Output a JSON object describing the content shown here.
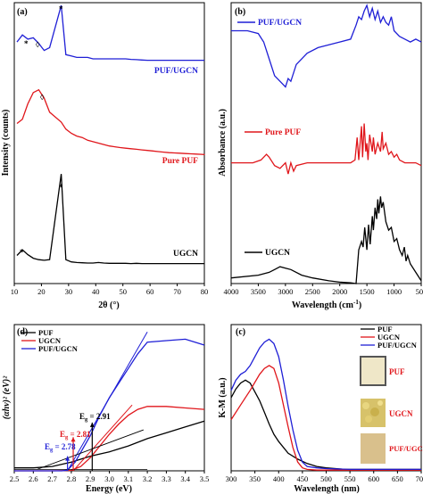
{
  "chart_data": [
    {
      "panel": "(a)",
      "type": "line",
      "xlabel": "2θ (°)",
      "ylabel": "Intensity (counts)",
      "xlim": [
        10,
        80
      ],
      "x_ticks": [
        "10",
        "20",
        "30",
        "40",
        "50",
        "60",
        "70",
        "80"
      ],
      "series": [
        {
          "name": "PUF/UGCN",
          "color": "#1f1fd6",
          "y": [
            0.86,
            0.885,
            0.87,
            0.875,
            0.855,
            0.83,
            0.84,
            0.99,
            0.815,
            0.81,
            0.805,
            0.805,
            0.805,
            0.8,
            0.8,
            0.8,
            0.8,
            0.8,
            0.8,
            0.8,
            0.798,
            0.797,
            0.796,
            0.795,
            0.795,
            0.795,
            0.795,
            0.795,
            0.795,
            0.795,
            0.795,
            0.795,
            0.795,
            0.795,
            0.795,
            0.795
          ]
        },
        {
          "name": "Pure PUF",
          "color": "#e0161b",
          "y": [
            0.57,
            0.585,
            0.64,
            0.68,
            0.69,
            0.66,
            0.61,
            0.575,
            0.55,
            0.535,
            0.525,
            0.52,
            0.51,
            0.505,
            0.5,
            0.495,
            0.49,
            0.487,
            0.484,
            0.482,
            0.48,
            0.478,
            0.476,
            0.474,
            0.472,
            0.47,
            0.468,
            0.466,
            0.465,
            0.464,
            0.463,
            0.462,
            0.461,
            0.46,
            0.459,
            0.458
          ]
        },
        {
          "name": "UGCN",
          "color": "#000000",
          "y": [
            0.1,
            0.12,
            0.103,
            0.09,
            0.085,
            0.083,
            0.085,
            0.39,
            0.085,
            0.077,
            0.075,
            0.074,
            0.073,
            0.073,
            0.075,
            0.073,
            0.072,
            0.072,
            0.072,
            0.072,
            0.071,
            0.072,
            0.071,
            0.071,
            0.071,
            0.071,
            0.071,
            0.071,
            0.071,
            0.071,
            0.071,
            0.071,
            0.071,
            0.071,
            0.071,
            0.071
          ]
        }
      ],
      "x": [
        11,
        13,
        15,
        17,
        19,
        21,
        23,
        27.3,
        29,
        31,
        33,
        35,
        37,
        39,
        41,
        43,
        45,
        47,
        49,
        51,
        53,
        55,
        57,
        59,
        61,
        63,
        65,
        67,
        69,
        71,
        73,
        75,
        77,
        79,
        80,
        80
      ],
      "annotations": [
        "*",
        "◊",
        "*",
        "◊",
        "*",
        "*"
      ]
    },
    {
      "panel": "(b)",
      "type": "line",
      "xlabel": "Wavelength (cm⁻¹)",
      "ylabel": "Absorbance (a.u.)",
      "xlim": [
        4000,
        500
      ],
      "x_ticks": [
        "4000",
        "3500",
        "3000",
        "2500",
        "2000",
        "1500",
        "1000",
        "500"
      ],
      "series": [
        {
          "name": "PUF/UGCN",
          "color": "#1f1fd6",
          "x": [
            4000,
            3700,
            3500,
            3400,
            3300,
            3200,
            3100,
            3000,
            2950,
            2900,
            2800,
            2600,
            2400,
            2200,
            2000,
            1800,
            1700,
            1650,
            1600,
            1550,
            1500,
            1450,
            1400,
            1350,
            1300,
            1250,
            1200,
            1150,
            1100,
            1050,
            1000,
            900,
            800,
            700,
            600,
            500
          ],
          "y": [
            0.9,
            0.9,
            0.89,
            0.86,
            0.8,
            0.74,
            0.72,
            0.7,
            0.73,
            0.72,
            0.78,
            0.82,
            0.84,
            0.85,
            0.86,
            0.87,
            0.92,
            0.95,
            0.94,
            0.97,
            0.99,
            0.95,
            0.98,
            0.94,
            0.97,
            0.93,
            0.95,
            0.93,
            0.92,
            0.95,
            0.9,
            0.88,
            0.87,
            0.86,
            0.87,
            0.86
          ]
        },
        {
          "name": "Pure PUF",
          "color": "#e0161b",
          "x": [
            4000,
            3600,
            3450,
            3350,
            3300,
            3200,
            3100,
            3000,
            2950,
            2900,
            2850,
            2800,
            2600,
            2400,
            2200,
            2000,
            1800,
            1720,
            1680,
            1650,
            1600,
            1580,
            1550,
            1520,
            1500,
            1480,
            1450,
            1400,
            1380,
            1350,
            1300,
            1250,
            1220,
            1200,
            1150,
            1100,
            1050,
            1000,
            950,
            900,
            800,
            700,
            600,
            500
          ],
          "y": [
            0.43,
            0.43,
            0.44,
            0.46,
            0.45,
            0.42,
            0.41,
            0.43,
            0.39,
            0.43,
            0.4,
            0.42,
            0.43,
            0.43,
            0.43,
            0.43,
            0.43,
            0.44,
            0.52,
            0.44,
            0.56,
            0.45,
            0.57,
            0.47,
            0.5,
            0.44,
            0.53,
            0.47,
            0.52,
            0.46,
            0.5,
            0.47,
            0.54,
            0.48,
            0.5,
            0.46,
            0.47,
            0.45,
            0.46,
            0.44,
            0.43,
            0.43,
            0.43,
            0.42
          ]
        },
        {
          "name": "UGCN",
          "color": "#000000",
          "x": [
            4000,
            3500,
            3300,
            3200,
            3100,
            3000,
            2900,
            2700,
            2500,
            2200,
            2000,
            1800,
            1700,
            1650,
            1600,
            1570,
            1540,
            1500,
            1470,
            1440,
            1400,
            1380,
            1350,
            1320,
            1300,
            1280,
            1250,
            1230,
            1200,
            1150,
            1100,
            1050,
            1000,
            950,
            900,
            850,
            810,
            780,
            750,
            700,
            600,
            500
          ],
          "y": [
            0.02,
            0.03,
            0.04,
            0.05,
            0.06,
            0.055,
            0.05,
            0.03,
            0.02,
            0.01,
            0.005,
            0.003,
            0.0,
            0.12,
            0.15,
            0.13,
            0.2,
            0.12,
            0.21,
            0.14,
            0.24,
            0.19,
            0.27,
            0.23,
            0.3,
            0.25,
            0.31,
            0.27,
            0.29,
            0.22,
            0.19,
            0.2,
            0.15,
            0.16,
            0.12,
            0.1,
            0.13,
            0.08,
            0.1,
            0.07,
            0.04,
            0.01
          ]
        }
      ]
    },
    {
      "panel": "(d)",
      "type": "line",
      "xlabel": "Energy (eV)",
      "ylabel": "(αhν)² (eV)²",
      "xlim": [
        2.5,
        3.5
      ],
      "x_ticks": [
        "2.5",
        "2.6",
        "2.7",
        "2.8",
        "2.9",
        "3.0",
        "3.1",
        "3.2",
        "3.3",
        "3.4",
        "3.5"
      ],
      "series": [
        {
          "name": "PUF",
          "color": "#000000",
          "x": [
            2.5,
            2.6,
            2.7,
            2.8,
            2.9,
            3.0,
            3.1,
            3.2,
            3.3,
            3.4,
            3.5
          ],
          "y": [
            0.02,
            0.02,
            0.03,
            0.06,
            0.1,
            0.13,
            0.17,
            0.22,
            0.26,
            0.3,
            0.34
          ]
        },
        {
          "name": "UGCN",
          "color": "#e0161b",
          "x": [
            2.5,
            2.6,
            2.7,
            2.8,
            2.85,
            2.9,
            2.95,
            3.0,
            3.05,
            3.1,
            3.15,
            3.2,
            3.3,
            3.4,
            3.5
          ],
          "y": [
            0.0,
            0.0,
            0.0,
            0.003,
            0.03,
            0.09,
            0.17,
            0.25,
            0.32,
            0.38,
            0.42,
            0.44,
            0.44,
            0.43,
            0.42
          ]
        },
        {
          "name": "PUF/UGCN",
          "color": "#1f1fd6",
          "x": [
            2.5,
            2.6,
            2.7,
            2.75,
            2.78,
            2.82,
            2.9,
            2.95,
            3.0,
            3.05,
            3.1,
            3.15,
            3.2,
            3.3,
            3.4,
            3.5
          ],
          "y": [
            0.0,
            0.0,
            0.0,
            0.0,
            0.005,
            0.06,
            0.24,
            0.38,
            0.5,
            0.6,
            0.7,
            0.8,
            0.88,
            0.89,
            0.9,
            0.86
          ]
        }
      ],
      "annotations": {
        "eg_puf": "E_g = 2.91",
        "eg_ugcn": "E_g = 2.81",
        "eg_pufugcn": "E_g = 2.78"
      }
    },
    {
      "panel": "(c)",
      "type": "line",
      "xlabel": "Wavelength (nm)",
      "ylabel": "K-M (a.u.)",
      "xlim": [
        300,
        700
      ],
      "x_ticks": [
        "300",
        "350",
        "400",
        "450",
        "500",
        "550",
        "600",
        "650",
        "700"
      ],
      "series": [
        {
          "name": "PUF",
          "color": "#000000",
          "x": [
            300,
            310,
            320,
            330,
            340,
            350,
            360,
            370,
            380,
            390,
            400,
            420,
            440,
            460,
            480,
            500,
            520,
            540,
            560,
            600,
            650,
            700
          ],
          "y": [
            0.5,
            0.56,
            0.6,
            0.62,
            0.6,
            0.54,
            0.48,
            0.4,
            0.32,
            0.25,
            0.2,
            0.12,
            0.08,
            0.05,
            0.03,
            0.02,
            0.015,
            0.01,
            0.01,
            0.01,
            0.01,
            0.01
          ]
        },
        {
          "name": "UGCN",
          "color": "#e0161b",
          "x": [
            300,
            320,
            340,
            360,
            370,
            380,
            390,
            400,
            410,
            420,
            430,
            440,
            450,
            460,
            480,
            500,
            550,
            600,
            650,
            700
          ],
          "y": [
            0.35,
            0.45,
            0.55,
            0.66,
            0.7,
            0.72,
            0.7,
            0.6,
            0.45,
            0.3,
            0.16,
            0.06,
            0.02,
            0.01,
            0.005,
            0.005,
            0.005,
            0.005,
            0.005,
            0.005
          ]
        },
        {
          "name": "PUF/UGCN",
          "color": "#1f1fd6",
          "x": [
            300,
            310,
            320,
            330,
            340,
            350,
            360,
            370,
            380,
            390,
            400,
            410,
            420,
            430,
            440,
            450,
            460,
            480,
            500,
            550,
            600,
            650,
            700
          ],
          "y": [
            0.55,
            0.62,
            0.66,
            0.68,
            0.72,
            0.78,
            0.84,
            0.88,
            0.9,
            0.87,
            0.78,
            0.62,
            0.44,
            0.28,
            0.14,
            0.06,
            0.03,
            0.02,
            0.015,
            0.01,
            0.01,
            0.01,
            0.01
          ]
        }
      ],
      "inset_labels": [
        "PUF",
        "UGCN",
        "PUF/UGCN"
      ]
    }
  ],
  "labels": {
    "a_panel": "(a)",
    "b_panel": "(b)",
    "c_panel": "(c)",
    "d_panel": "(d)",
    "a_xlabel": "2θ (°)",
    "a_ylabel": "Intensity (counts)",
    "b_xlabel": "Wavelength (cm",
    "b_xlabel_sup": "-1",
    "b_xlabel_end": ")",
    "b_ylabel": "Absorbance (a.u.)",
    "c_xlabel": "Wavelength (nm)",
    "c_ylabel": "K-M (a.u.)",
    "d_xlabel": "Energy (eV)",
    "d_ylabel": "(αhν)² (eV)²",
    "a_name_pufugcn": "PUF/UGCN",
    "a_name_puf": "Pure PUF",
    "a_name_ugcn": "UGCN",
    "b_name_pufugcn": "PUF/UGCN",
    "b_name_puf": "Pure PUF",
    "b_name_ugcn": "UGCN",
    "d_legend": [
      "PUF",
      "UGCN",
      "PUF/UGCN"
    ],
    "c_legend": [
      "PUF",
      "UGCN",
      "PUF/UGCN"
    ],
    "c_inset": [
      "PUF",
      "UGCN",
      "PUF/UGCN"
    ],
    "eg_puf_prefix": "E",
    "eg_puf_sub": "g",
    "eg_puf_val": " = 2.91",
    "eg_ugcn_prefix": "E",
    "eg_ugcn_sub": "g",
    "eg_ugcn_val": " = 2.81",
    "eg_pufugcn_prefix": "E",
    "eg_pufugcn_sub": "g",
    "eg_pufugcn_val": " = 2.78",
    "a_markers": [
      "*",
      "◊",
      "*",
      "◊",
      "*",
      "*"
    ]
  }
}
